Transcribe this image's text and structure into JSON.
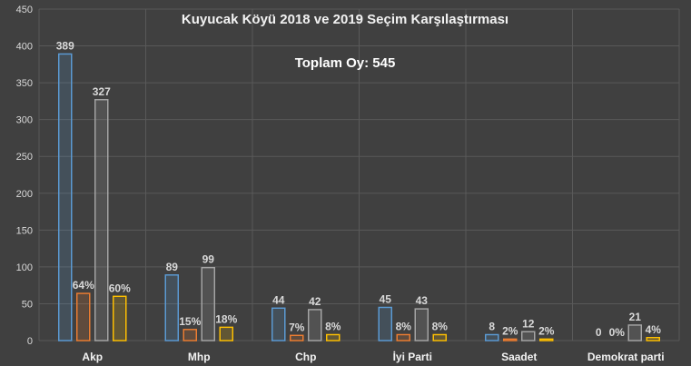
{
  "chart_data": {
    "type": "bar",
    "title": "Kuyucak Köyü 2018 ve 2019 Seçim Karşılaştırması",
    "subtitle": "Toplam Oy: 545",
    "xlabel": "",
    "ylabel": "",
    "ylim": [
      0,
      450
    ],
    "yticks": [
      0,
      50,
      100,
      150,
      200,
      250,
      300,
      350,
      400,
      450
    ],
    "grid": true,
    "categories": [
      "Akp",
      "Mhp",
      "Chp",
      "İyi Parti",
      "Saadet",
      "Demokrat parti"
    ],
    "series": [
      {
        "values": [
          389,
          89,
          44,
          45,
          8,
          0
        ],
        "labels": [
          "389",
          "89",
          "44",
          "45",
          "8",
          "0"
        ],
        "color": "#5b9bd5"
      },
      {
        "values": [
          64,
          15,
          7,
          8,
          2,
          0
        ],
        "labels": [
          "64%",
          "15%",
          "7%",
          "8%",
          "2%",
          "0%"
        ],
        "color": "#ed7d31"
      },
      {
        "values": [
          327,
          99,
          42,
          43,
          12,
          21
        ],
        "labels": [
          "327",
          "99",
          "42",
          "43",
          "12",
          "21"
        ],
        "color": "#a5a5a5"
      },
      {
        "values": [
          60,
          18,
          8,
          8,
          2,
          4
        ],
        "labels": [
          "60%",
          "18%",
          "8%",
          "8%",
          "2%",
          "4%"
        ],
        "color": "#ffc000"
      }
    ],
    "legend": "none"
  }
}
